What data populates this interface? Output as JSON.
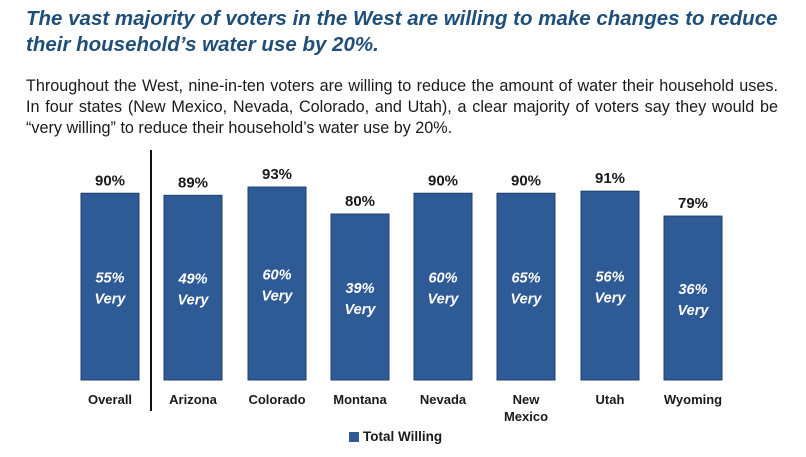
{
  "headline": "The vast majority of voters in the West are willing to make changes to reduce their household’s water use by 20%.",
  "body": "Throughout the West, nine-in-ten voters are willing to reduce the amount of water their household uses. In four states (New Mexico, Nevada, Colorado, and Utah), a clear majority of voters say they would be “very willing” to reduce their household’s water use by 20%.",
  "colors": {
    "bar": "#2e5b96",
    "bar_edge": "#1d3f6e",
    "inner_text": "#ffffff",
    "label_text": "#1a1a1a",
    "headline": "#1f4e79"
  },
  "chart_data": {
    "type": "bar",
    "categories": [
      "Overall",
      "Arizona",
      "Colorado",
      "Montana",
      "Nevada",
      "New Mexico",
      "Utah",
      "Wyoming"
    ],
    "category_lines": [
      [
        "Overall"
      ],
      [
        "Arizona"
      ],
      [
        "Colorado"
      ],
      [
        "Montana"
      ],
      [
        "Nevada"
      ],
      [
        "New",
        "Mexico"
      ],
      [
        "Utah"
      ],
      [
        "Wyoming"
      ]
    ],
    "series": [
      {
        "name": "Total Willing",
        "values": [
          90,
          89,
          93,
          80,
          90,
          90,
          91,
          79
        ],
        "labels": [
          "90%",
          "89%",
          "93%",
          "80%",
          "90%",
          "90%",
          "91%",
          "79%"
        ]
      },
      {
        "values": [
          55,
          49,
          60,
          39,
          60,
          65,
          56,
          36
        ],
        "inner_labels": [
          [
            "55%",
            "Very"
          ],
          [
            "49%",
            "Very"
          ],
          [
            "60%",
            "Very"
          ],
          [
            "39%",
            "Very"
          ],
          [
            "60%",
            "Very"
          ],
          [
            "65%",
            "Very"
          ],
          [
            "56%",
            "Very"
          ],
          [
            "36%",
            "Very"
          ]
        ]
      }
    ],
    "legend": [
      "Total Willing"
    ],
    "legend_position": "bottom",
    "divider_after": "Overall",
    "ylim": [
      0,
      100
    ],
    "grid": false
  }
}
